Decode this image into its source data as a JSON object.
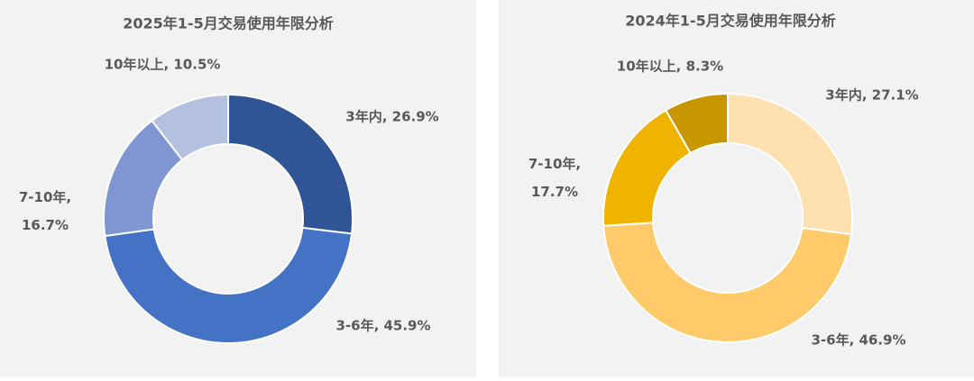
{
  "chart_data": [
    {
      "type": "donut",
      "title": "2025年1-5月交易使用年限分析",
      "values": [
        26.9,
        45.9,
        16.7,
        10.5
      ],
      "value_labels": [
        "3年内, 26.9%",
        "3-6年, 45.9%",
        "7-10年, 16.7%",
        "10年以上, 10.5%"
      ],
      "colors": [
        "#2f5597",
        "#4472c4",
        "#7f96d2",
        "#b4c0e0"
      ]
    },
    {
      "type": "donut",
      "title": "2024年1-5月交易使用年限分析",
      "values": [
        27.1,
        46.9,
        17.7,
        8.3
      ],
      "value_labels": [
        "3年内, 27.1%",
        "3-6年, 46.9%",
        "7-10年, 17.7%",
        "10年以上, 8.3%"
      ],
      "colors": [
        "#ffe0b0",
        "#ffca6a",
        "#f0b400",
        "#c89600"
      ]
    }
  ]
}
